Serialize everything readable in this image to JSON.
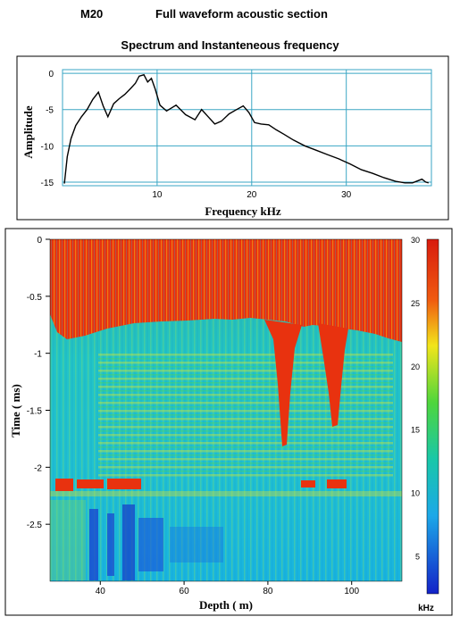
{
  "header": {
    "code": "M20",
    "title": "Full waveform acoustic section"
  },
  "spectrum": {
    "title": "Spectrum and Instanteneous frequency",
    "colors": {
      "grid": "#3aa6c4",
      "line": "#000000",
      "frame": "#000000"
    },
    "chart_data": {
      "type": "line",
      "title": "Spectrum and Instanteneous frequency",
      "xlabel": "Frequency kHz",
      "ylabel": "Amplitude",
      "xlim": [
        0,
        39
      ],
      "ylim": [
        -15.5,
        0.5
      ],
      "xticks": [
        10,
        20,
        30
      ],
      "yticks": [
        0,
        -5,
        -10,
        -15
      ],
      "grid": true,
      "series": [
        {
          "x": [
            0.2,
            0.5,
            0.9,
            1.4,
            2.0,
            2.6,
            3.2,
            3.8,
            4.3,
            4.8,
            5.4,
            6.0,
            6.6,
            7.2,
            7.7,
            8.1,
            8.6,
            9.0,
            9.4,
            9.8,
            10.3,
            11.0,
            12.0,
            13.0,
            14.0,
            14.7,
            15.4,
            16.1,
            16.8,
            17.6,
            18.4,
            19.1,
            19.7,
            20.3,
            21.0,
            21.8,
            22.6,
            23.4,
            24.4,
            25.6,
            26.8,
            28.0,
            29.2,
            30.4,
            31.6,
            32.8,
            34.0,
            35.2,
            36.2,
            37.0,
            37.6,
            38.0,
            38.4,
            38.7
          ],
          "y": [
            -15.2,
            -11.5,
            -9.0,
            -7.2,
            -6.0,
            -5.0,
            -3.6,
            -2.6,
            -4.5,
            -6.0,
            -4.2,
            -3.5,
            -2.9,
            -2.1,
            -1.4,
            -0.4,
            -0.2,
            -1.2,
            -0.7,
            -2.2,
            -4.4,
            -5.2,
            -4.4,
            -5.7,
            -6.4,
            -5.0,
            -6.0,
            -7.0,
            -6.6,
            -5.6,
            -5.0,
            -4.5,
            -5.4,
            -6.8,
            -7.0,
            -7.1,
            -7.8,
            -8.4,
            -9.2,
            -10.0,
            -10.6,
            -11.2,
            -11.8,
            -12.5,
            -13.3,
            -13.8,
            -14.4,
            -14.9,
            -15.1,
            -15.1,
            -14.8,
            -14.6,
            -15.0,
            -15.1
          ]
        }
      ]
    }
  },
  "section": {
    "ylabel": "Time ( ms)",
    "xlabel": "Depth ( m)",
    "yticks": [
      "0",
      "-0.5",
      "-1",
      "-1.5",
      "-2",
      "-2.5"
    ],
    "xticks": [
      "40",
      "60",
      "80",
      "100"
    ],
    "ytick_values": [
      0,
      -0.5,
      -1,
      -1.5,
      -2,
      -2.5
    ],
    "xtick_values": [
      40,
      60,
      80,
      100
    ],
    "xlim": [
      28,
      112
    ],
    "ylim": [
      -3.0,
      0
    ],
    "colorbar": {
      "ticks": [
        "30",
        "25",
        "20",
        "15",
        "10",
        "5"
      ],
      "tick_values": [
        30,
        25,
        20,
        15,
        10,
        5
      ],
      "unit": "kHz",
      "range": [
        2,
        30
      ]
    }
  }
}
